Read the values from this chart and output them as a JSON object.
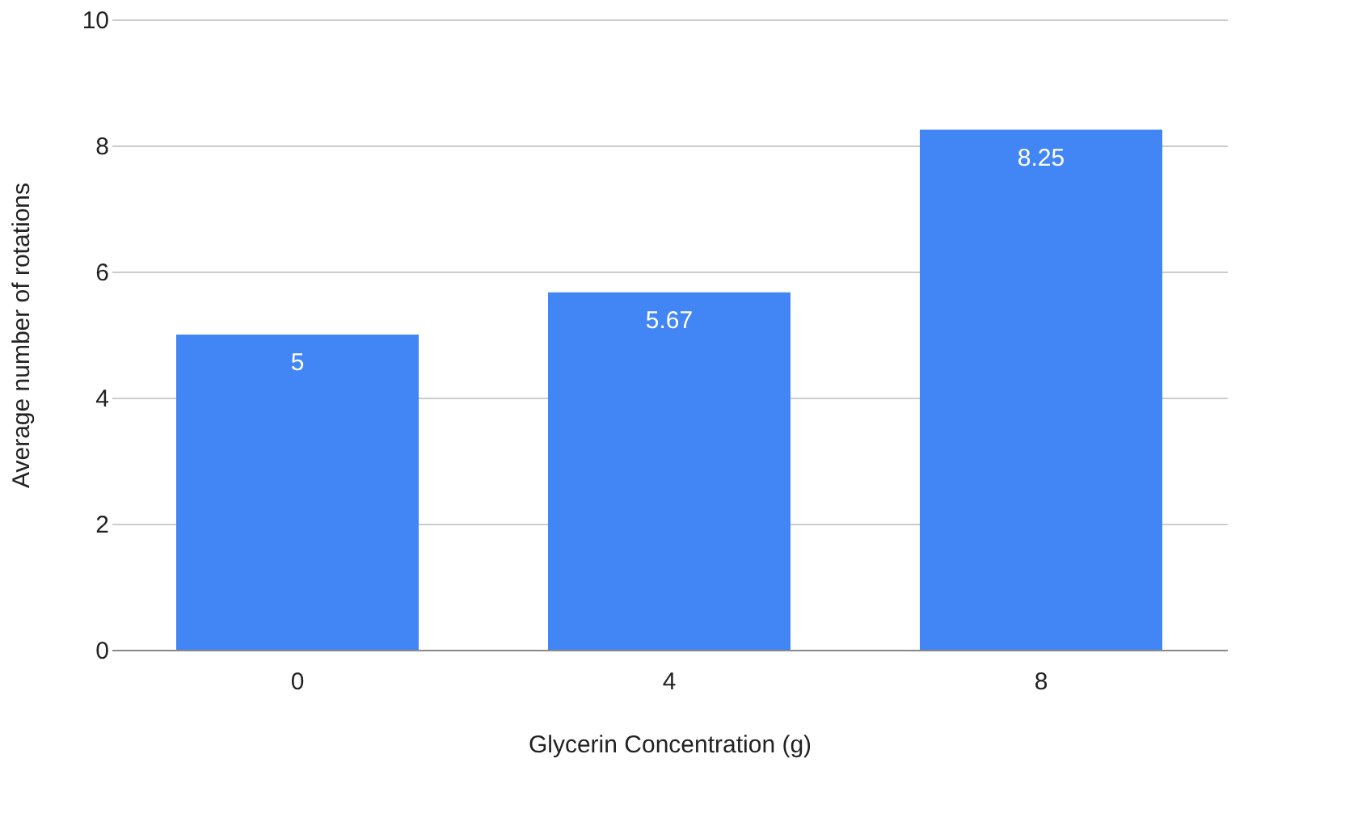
{
  "chart_data": {
    "type": "bar",
    "xlabel": "Glycerin Concentration (g)",
    "ylabel": "Average number of rotations",
    "categories": [
      "0",
      "4",
      "8"
    ],
    "values": [
      5,
      5.67,
      8.25
    ],
    "color": "#4285f4",
    "ylim": [
      0,
      10
    ],
    "yticks": [
      0,
      2,
      4,
      6,
      8,
      10
    ],
    "grid": "y",
    "data_labels": true
  }
}
